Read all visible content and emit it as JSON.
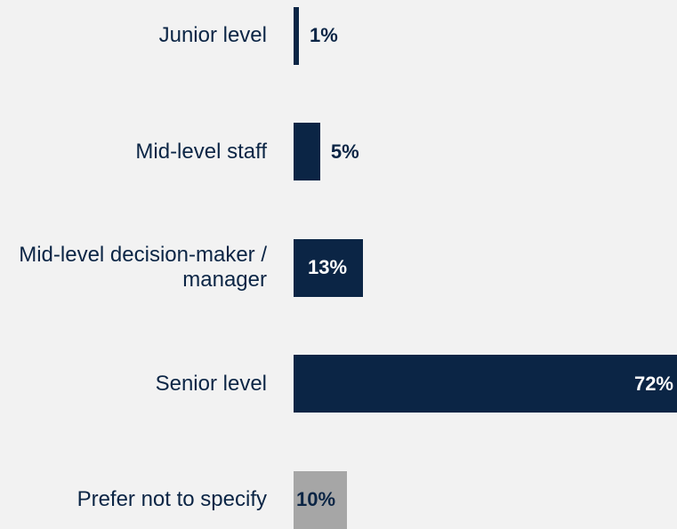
{
  "chart_data": {
    "type": "bar",
    "orientation": "horizontal",
    "categories": [
      "Junior level",
      "Mid-level staff",
      "Mid-level decision-maker / manager",
      "Senior level",
      "Prefer not to specify"
    ],
    "values": [
      1,
      5,
      13,
      72,
      10
    ],
    "value_labels": [
      "1%",
      "5%",
      "13%",
      "72%",
      "10%"
    ],
    "colors": [
      "#0b2545",
      "#0b2545",
      "#0b2545",
      "#0b2545",
      "#a6a6a6"
    ]
  }
}
